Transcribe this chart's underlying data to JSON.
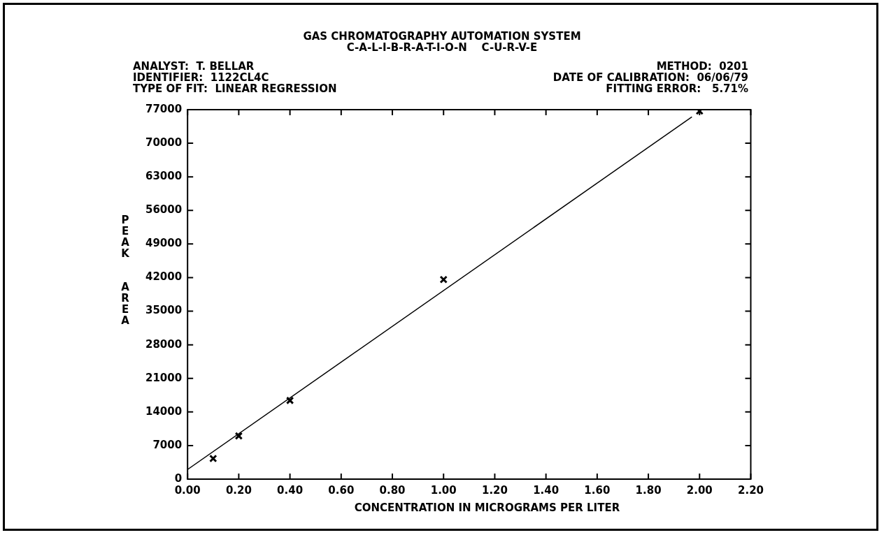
{
  "chart_data": {
    "type": "scatter",
    "title": "GAS CHROMATOGRAPHY AUTOMATION SYSTEM",
    "subtitle": "C-A-L-I-B-R-A-T-I-O-N    C-U-R-V-E",
    "annotations": [
      "ANALYST:  T. BELLAR",
      "METHOD:  0201",
      "IDENTIFIER:  1122CL4C",
      "DATE OF CALIBRATION:  06/06/79",
      "TYPE OF FIT:  LINEAR REGRESSION",
      "FITTING ERROR:   5.71%"
    ],
    "xlabel": "CONCENTRATION IN MICROGRAMS PER LITER",
    "ylabel": "PEAK AREA",
    "series": [
      {
        "color": "#000000",
        "x": [
          0.1,
          0.2,
          0.4,
          1.0,
          2.0
        ],
        "values": [
          4300,
          9000,
          16400,
          41600,
          76700
        ]
      },
      {
        "type": "line",
        "color": "#000000",
        "marker": "none",
        "x": [
          0,
          1.97
        ],
        "values": [
          2000,
          75500
        ]
      }
    ],
    "xlim": [
      0,
      2.2
    ],
    "xticks": [
      {
        "value": 0,
        "label": "0.00"
      },
      {
        "value": 0.2,
        "label": "0.20"
      },
      {
        "value": 0.4,
        "label": "0.40"
      },
      {
        "value": 0.6,
        "label": "0.60"
      },
      {
        "value": 0.8,
        "label": "0.80"
      },
      {
        "value": 1,
        "label": "1.00"
      },
      {
        "value": 1.2,
        "label": "1.20"
      },
      {
        "value": 1.4,
        "label": "1.40"
      },
      {
        "value": 1.6,
        "label": "1.60"
      },
      {
        "value": 1.8,
        "label": "1.80"
      },
      {
        "value": 2,
        "label": "2.00"
      },
      {
        "value": 2.2,
        "label": "2.20"
      }
    ],
    "ylim": [
      0,
      77000
    ],
    "yticks": [
      0,
      7000,
      14000,
      21000,
      28000,
      35000,
      42000,
      49000,
      56000,
      63000,
      70000,
      77000
    ],
    "grid": false,
    "legend": false,
    "marker": "cross"
  }
}
